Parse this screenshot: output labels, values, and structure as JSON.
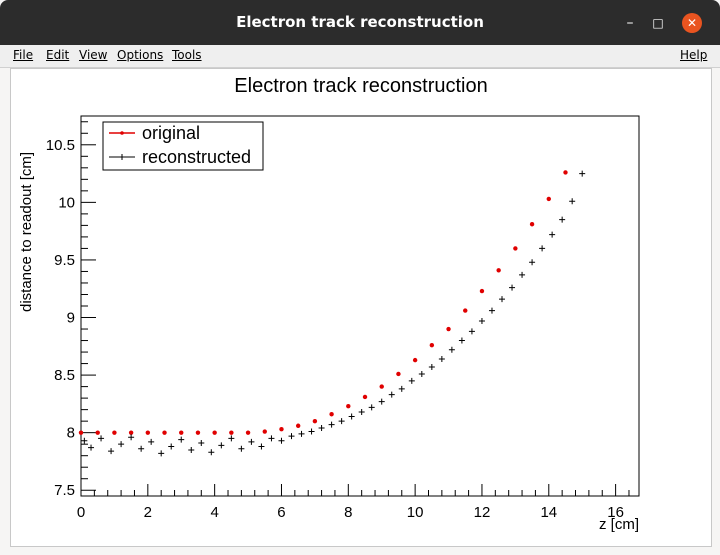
{
  "window": {
    "title": "Electron track reconstruction",
    "controls": {
      "minimize": "–",
      "maximize": "□",
      "close": "✕"
    }
  },
  "menu": {
    "items": [
      "File",
      "Edit",
      "View",
      "Options",
      "Tools"
    ],
    "help": "Help"
  },
  "chart_data": {
    "type": "scatter",
    "title": "Electron track reconstruction",
    "xlabel": "z [cm]",
    "ylabel": "distance to readout [cm]",
    "xlim": [
      0,
      16.7
    ],
    "ylim": [
      7.45,
      10.75
    ],
    "xticks": [
      0,
      2,
      4,
      6,
      8,
      10,
      12,
      14,
      16
    ],
    "yticks": [
      7.5,
      8,
      8.5,
      9,
      9.5,
      10,
      10.5
    ],
    "xtick_labels": [
      "0",
      "2",
      "4",
      "6",
      "8",
      "10",
      "12",
      "14",
      "16"
    ],
    "ytick_labels": [
      "7.5",
      "8",
      "8.5",
      "9",
      "9.5",
      "10",
      "10.5"
    ],
    "legend": {
      "placement": "top-left",
      "entries": [
        "original",
        "reconstructed"
      ]
    },
    "colors": {
      "original": "#e00000",
      "reconstructed": "#000000"
    },
    "series": [
      {
        "name": "original",
        "model": "y = 8 for z <= 5; y = 8 + 0.025*(z-5)^2 for z > 5",
        "x": [
          0.0,
          0.5,
          1.0,
          1.5,
          2.0,
          2.5,
          3.0,
          3.5,
          4.0,
          4.5,
          5.0,
          5.5,
          6.0,
          6.5,
          7.0,
          7.5,
          8.0,
          8.5,
          9.0,
          9.5,
          10.0,
          10.5,
          11.0,
          11.5,
          12.0,
          12.5,
          13.0,
          13.5,
          14.0,
          14.5
        ],
        "y": [
          8.0,
          8.0,
          8.0,
          8.0,
          8.0,
          8.0,
          8.0,
          8.0,
          8.0,
          8.0,
          8.0,
          8.01,
          8.03,
          8.06,
          8.1,
          8.16,
          8.23,
          8.31,
          8.4,
          8.51,
          8.63,
          8.76,
          8.9,
          9.06,
          9.23,
          9.41,
          9.6,
          9.81,
          10.03,
          10.26
        ]
      },
      {
        "name": "reconstructed",
        "x": [
          0.1,
          0.3,
          0.6,
          0.9,
          1.2,
          1.5,
          1.8,
          2.1,
          2.4,
          2.7,
          3.0,
          3.3,
          3.6,
          3.9,
          4.2,
          4.5,
          4.8,
          5.1,
          5.4,
          5.7,
          6.0,
          6.3,
          6.6,
          6.9,
          7.2,
          7.5,
          7.8,
          8.1,
          8.4,
          8.7,
          9.0,
          9.3,
          9.6,
          9.9,
          10.2,
          10.5,
          10.8,
          11.1,
          11.4,
          11.7,
          12.0,
          12.3,
          12.6,
          12.9,
          13.2,
          13.5,
          13.8,
          14.1,
          14.4,
          14.7,
          15.0
        ],
        "y": [
          7.93,
          7.87,
          7.95,
          7.84,
          7.9,
          7.96,
          7.86,
          7.92,
          7.82,
          7.88,
          7.94,
          7.85,
          7.91,
          7.83,
          7.89,
          7.95,
          7.86,
          7.92,
          7.88,
          7.95,
          7.93,
          7.97,
          7.99,
          8.01,
          8.04,
          8.07,
          8.1,
          8.14,
          8.18,
          8.22,
          8.27,
          8.33,
          8.38,
          8.45,
          8.51,
          8.57,
          8.64,
          8.72,
          8.8,
          8.88,
          8.97,
          9.06,
          9.16,
          9.26,
          9.37,
          9.48,
          9.6,
          9.72,
          9.85,
          10.01,
          10.25
        ]
      }
    ]
  }
}
